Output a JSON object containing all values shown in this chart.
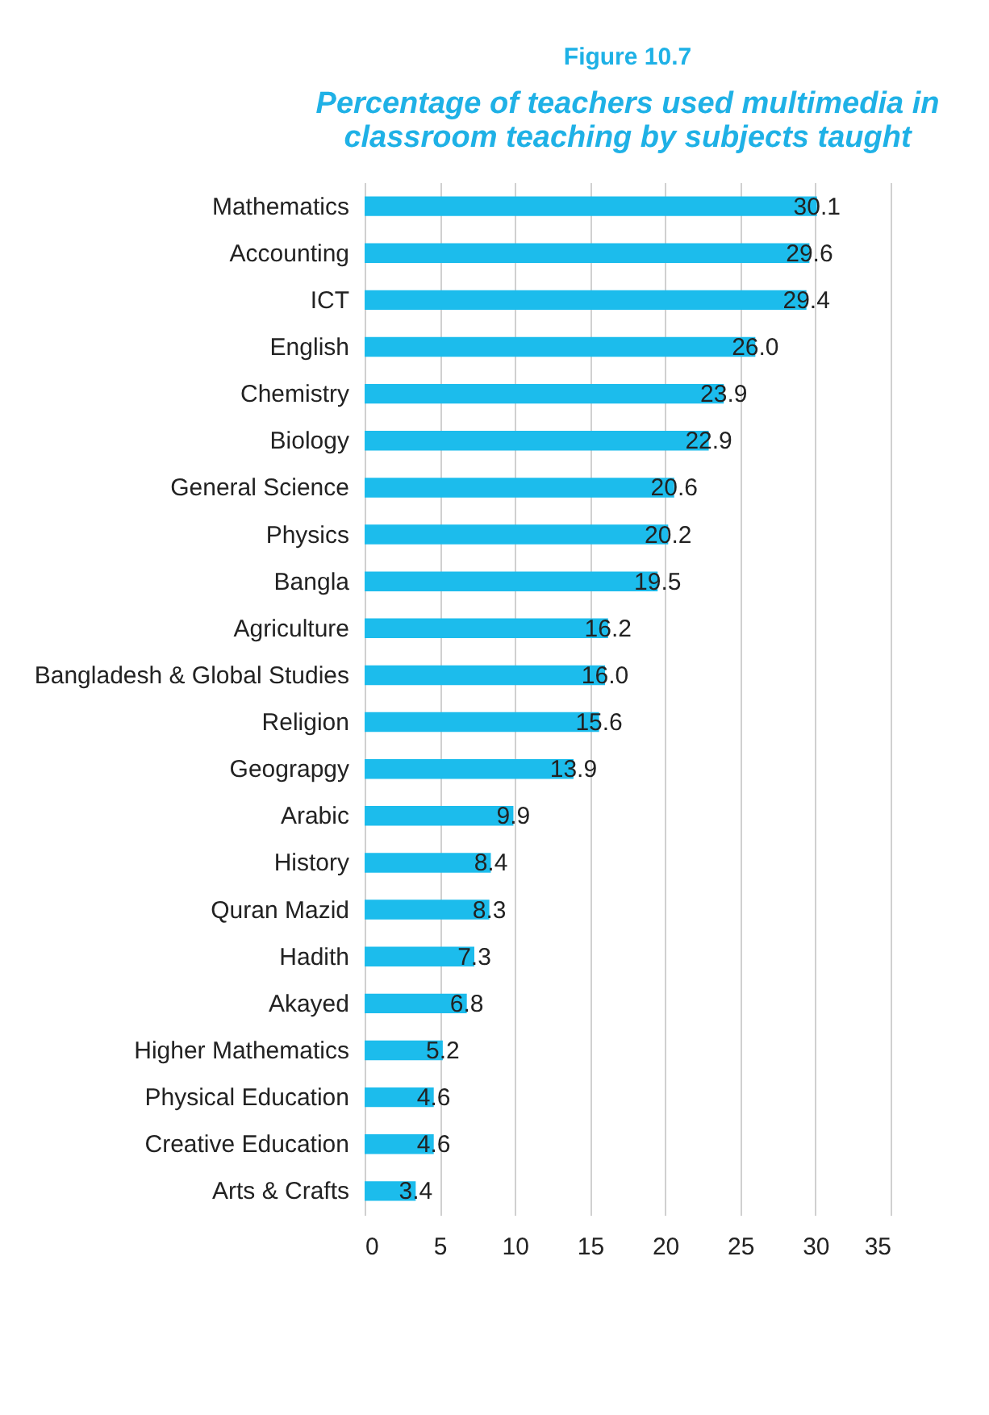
{
  "chart_data": {
    "type": "bar",
    "orientation": "horizontal",
    "title": "Figure 10.7",
    "subtitle": "Percentage of teachers used multimedia in classroom teaching by subjects taught",
    "categories": [
      "Mathematics",
      "Accounting",
      "ICT",
      "English",
      "Chemistry",
      "Biology",
      "General Science",
      "Physics",
      "Bangla",
      "Agriculture",
      "Bangladesh & Global Studies",
      "Religion",
      "Geograpgy",
      "Arabic",
      "History",
      "Quran Mazid",
      "Hadith",
      "Akayed",
      "Higher Mathematics",
      "Physical Education",
      "Creative Education",
      "Arts & Crafts"
    ],
    "values": [
      30.1,
      29.6,
      29.4,
      26.0,
      23.9,
      22.9,
      20.6,
      20.2,
      19.5,
      16.2,
      16.0,
      15.6,
      13.9,
      9.9,
      8.4,
      8.3,
      7.3,
      6.8,
      5.2,
      4.6,
      4.6,
      3.4
    ],
    "value_labels": [
      "30.1",
      "29.6",
      "29.4",
      "26.0",
      "23.9",
      "22.9",
      "20.6",
      "20.2",
      "19.5",
      "16.2",
      "16.0",
      "15.6",
      "13.9",
      "9.9",
      "8.4",
      "8.3",
      "7.3",
      "6.8",
      "5.2",
      "4.6",
      "4.6",
      "3.4"
    ],
    "color": "#1cbcec",
    "xlim": [
      0,
      35
    ],
    "xticks": [
      0,
      5,
      10,
      15,
      20,
      25,
      30,
      35
    ],
    "grid": "x"
  }
}
